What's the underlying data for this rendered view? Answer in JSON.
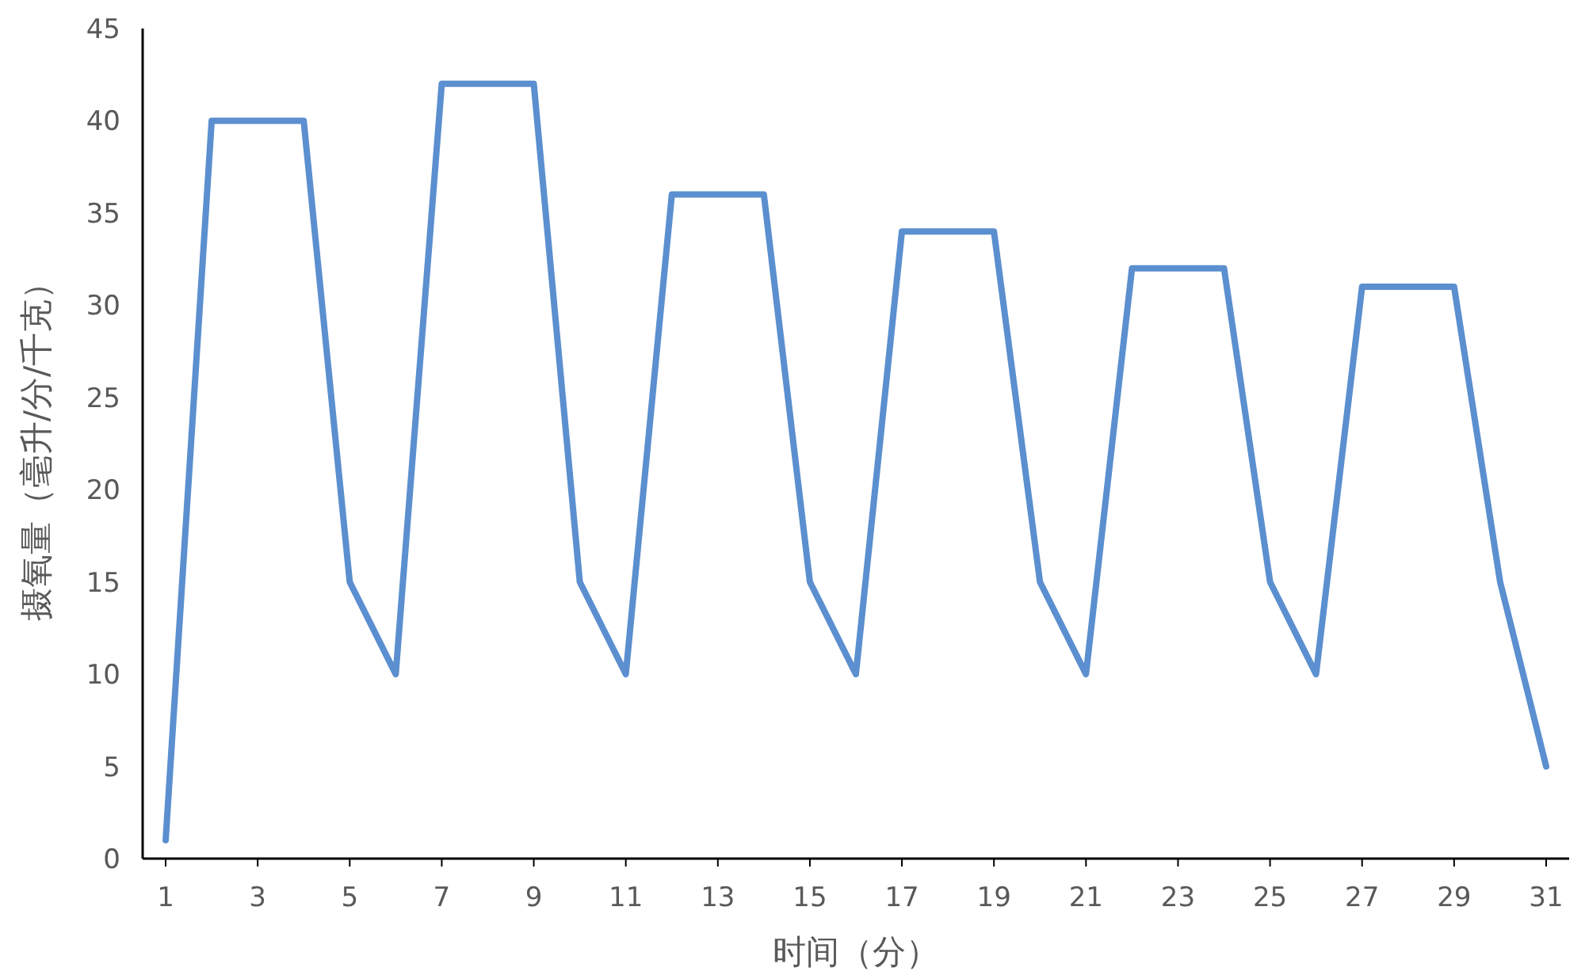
{
  "chart_data": {
    "type": "line",
    "xlabel": "时间（分）",
    "ylabel": "摄氧量（毫升/分/千克）",
    "x": [
      1,
      2,
      3,
      4,
      5,
      6,
      7,
      8,
      9,
      10,
      11,
      12,
      13,
      14,
      15,
      16,
      17,
      18,
      19,
      20,
      21,
      22,
      23,
      24,
      25,
      26,
      27,
      28,
      29,
      30,
      31
    ],
    "series": [
      {
        "color": "#5b8fcf",
        "values": [
          1,
          40,
          40,
          40,
          15,
          10,
          42,
          42,
          42,
          15,
          10,
          36,
          36,
          36,
          15,
          10,
          34,
          34,
          34,
          15,
          10,
          32,
          32,
          32,
          15,
          10,
          31,
          31,
          31,
          15,
          5
        ]
      }
    ],
    "xlim": [
      0.5,
      31.5
    ],
    "xticks": [
      1,
      3,
      5,
      7,
      9,
      11,
      13,
      15,
      17,
      19,
      21,
      23,
      25,
      27,
      29,
      31
    ],
    "ylim": [
      0,
      45
    ],
    "yticks": [
      0,
      5,
      10,
      15,
      20,
      25,
      30,
      35,
      40,
      45
    ],
    "grid": false,
    "marker": "none",
    "line_style": "solid"
  }
}
